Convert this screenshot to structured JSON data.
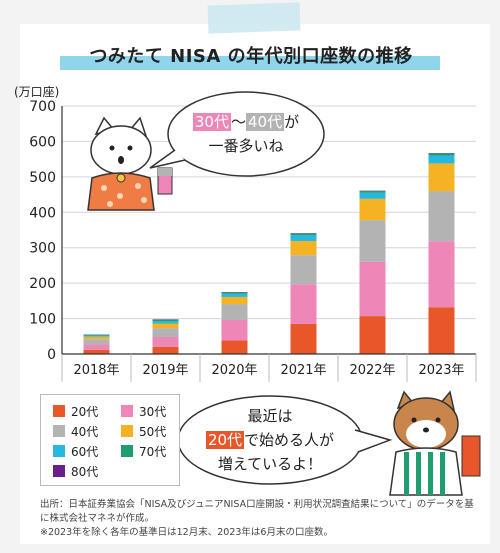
{
  "title": "つみたて NISA の年代別口座数の推移",
  "chart_data": {
    "type": "bar",
    "stacked": true,
    "ylabel": "(万口座)",
    "ylim": [
      0,
      700
    ],
    "yticks": [
      0,
      100,
      200,
      300,
      400,
      500,
      600,
      700
    ],
    "grid": true,
    "categories": [
      "2018年",
      "2019年",
      "2020年",
      "2021年",
      "2022年",
      "2023年"
    ],
    "series": [
      {
        "name": "20代",
        "color": "#e8572a",
        "values": [
          12,
          20,
          38,
          85,
          107,
          132
        ]
      },
      {
        "name": "30代",
        "color": "#ee86b7",
        "values": [
          15,
          28,
          58,
          112,
          153,
          186
        ]
      },
      {
        "name": "40代",
        "color": "#b3b3b3",
        "values": [
          15,
          25,
          45,
          82,
          118,
          142
        ]
      },
      {
        "name": "50代",
        "color": "#f5b324",
        "values": [
          7,
          13,
          20,
          40,
          60,
          78
        ]
      },
      {
        "name": "60代",
        "color": "#27b7e3",
        "values": [
          3,
          7,
          9,
          16,
          17,
          22
        ]
      },
      {
        "name": "70代",
        "color": "#1e9e6e",
        "values": [
          2,
          4,
          4,
          5,
          5,
          6
        ]
      },
      {
        "name": "80代",
        "color": "#6a1e8c",
        "values": [
          1,
          1,
          1,
          1,
          1,
          1
        ]
      }
    ],
    "legend_position": "bottom-left"
  },
  "bubble1": {
    "hl1": "30代",
    "sep": "〜",
    "hl2": "40代",
    "tail": "が",
    "line2": "一番多いね"
  },
  "bubble2": {
    "line1": "最近は",
    "hl": "20代",
    "line2_tail": "で始める人が",
    "line3": "増えているよ！"
  },
  "source": {
    "line1": "出所：日本証券業協会「NISA及びジュニアNISA口座開設・利用状況調査結果について」のデータを基に株式会社マネネが作成。",
    "line2": "※2023年を除く各年の基準日は12月末、2023年は6月末の口座数。"
  }
}
